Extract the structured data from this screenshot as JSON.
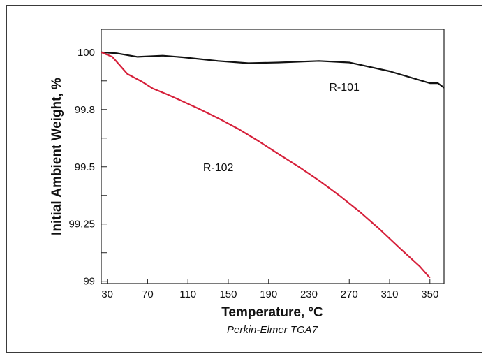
{
  "chart_data": {
    "type": "line",
    "title": "",
    "xlabel": "Temperature, °C",
    "ylabel": "Initial Ambient Weight, %",
    "caption": "Perkin-Elmer TGA7",
    "x_ticks": [
      30,
      70,
      110,
      150,
      190,
      230,
      270,
      310,
      350
    ],
    "y_ticks": [
      {
        "value": 99,
        "label": "99"
      },
      {
        "value": 99.25,
        "label": "99.25"
      },
      {
        "value": 99.5,
        "label": "99.5"
      },
      {
        "value": 99.75,
        "label": "99.8"
      },
      {
        "value": 100,
        "label": "100"
      }
    ],
    "xlim": [
      24,
      364
    ],
    "ylim": [
      98.99,
      100.1
    ],
    "grid": false,
    "legend": "none",
    "series": [
      {
        "name": "R-101",
        "color": "#111111",
        "label_at": {
          "x": 250,
          "y": 99.85
        },
        "x": [
          24,
          40,
          60,
          85,
          105,
          140,
          170,
          200,
          240,
          270,
          310,
          350,
          358,
          364
        ],
        "y": [
          100.0,
          99.995,
          99.98,
          99.985,
          99.978,
          99.962,
          99.952,
          99.955,
          99.962,
          99.955,
          99.917,
          99.865,
          99.865,
          99.845
        ]
      },
      {
        "name": "R-102",
        "color": "#d6203a",
        "label_at": {
          "x": 125,
          "y": 99.5
        },
        "x": [
          24,
          35,
          50,
          65,
          75,
          90,
          100,
          120,
          140,
          160,
          180,
          200,
          220,
          240,
          260,
          280,
          300,
          320,
          340,
          350
        ],
        "y": [
          100.0,
          99.98,
          99.905,
          99.87,
          99.842,
          99.815,
          99.795,
          99.755,
          99.712,
          99.665,
          99.612,
          99.555,
          99.5,
          99.44,
          99.375,
          99.305,
          99.228,
          99.145,
          99.065,
          99.015
        ]
      }
    ]
  }
}
